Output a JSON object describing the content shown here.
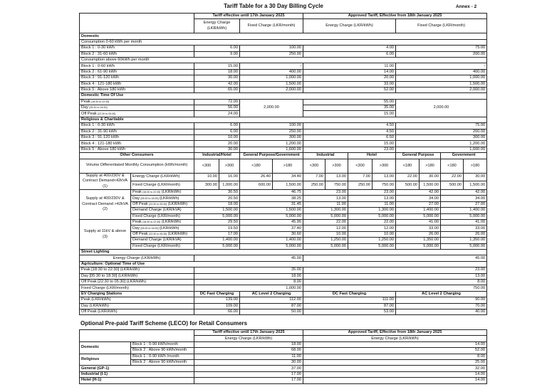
{
  "title": "Tariff Table for a 30 Day Billing Cycle",
  "annex": "Annex - 2",
  "header": {
    "old": "Tariff effective until 17th January 2025",
    "new": "Approved Tariff, Effective from 18th January 2025",
    "old_energy": "Energy Charge (LKR/kWh)",
    "old_fixed": "Fixed Charge (LKR/month)",
    "new_energy": "Energy Charge (LKR/kWh)",
    "new_fixed": "Fixed Charge (LKR/month)"
  },
  "domestic": {
    "heading": "Domestic",
    "groups": [
      {
        "label": "Consumption 0-60 kWh per month",
        "blocks": [
          {
            "label": "Block 1 : 0-30 kWh",
            "old_energy": "6.00",
            "old_fixed": "100.00",
            "new_energy": "4.00",
            "new_fixed": "75.00"
          },
          {
            "label": "Block 2 : 31-60 kWh",
            "old_energy": "9.00",
            "old_fixed": "250.00",
            "new_energy": "6.00",
            "new_fixed": "200.00"
          }
        ]
      },
      {
        "label": "Consumption above 60kWh per month",
        "blocks": [
          {
            "label": "Block 1 : 0-60 kWh",
            "old_energy": "15.00",
            "old_fixed": "-",
            "new_energy": "11.00",
            "new_fixed": "-"
          },
          {
            "label": "Block 2 : 61-90 kWh",
            "old_energy": "18.00",
            "old_fixed": "400.00",
            "new_energy": "14.00",
            "new_fixed": "400.00"
          },
          {
            "label": "Block 3 : 91-120 kWh",
            "old_energy": "30.00",
            "old_fixed": "1,000.00",
            "new_energy": "20.00",
            "new_fixed": "1,000.00"
          },
          {
            "label": "Block 4 : 121-180 kWh",
            "old_energy": "42.00",
            "old_fixed": "1,500.00",
            "new_energy": "33.00",
            "new_fixed": "1,500.00"
          },
          {
            "label": "Block 5 : Above 180 kWh",
            "old_energy": "65.00",
            "old_fixed": "2,000.00",
            "new_energy": "52.00",
            "new_fixed": "2,000.00"
          }
        ]
      }
    ]
  },
  "domestic_tou": {
    "heading": "Domestic Time Of Use",
    "old_fixed": "2,000.00",
    "new_fixed": "2,000.00",
    "rows": [
      {
        "label": "Peak",
        "time": "[18:30 to 22:30]",
        "old_energy": "72.00",
        "new_energy": "55.00"
      },
      {
        "label": "Day",
        "time": "[05:30 to 18:30]",
        "old_energy": "56.00",
        "new_energy": "35.00"
      },
      {
        "label": "Off Peak",
        "time": "[22:30 to 05:30]",
        "old_energy": "24.00",
        "new_energy": "15.00"
      }
    ]
  },
  "religious": {
    "heading": "Religious & Charitable",
    "blocks": [
      {
        "label": "Block 1 : 0-30 kWh",
        "old_energy": "6.00",
        "old_fixed": "100.00",
        "new_energy": "4.50",
        "new_fixed": "75.00"
      },
      {
        "label": "Block 2 : 31-90 kWh",
        "old_energy": "6.00",
        "old_fixed": "250.00",
        "new_energy": "4.50",
        "new_fixed": "200.00"
      },
      {
        "label": "Block 3 : 91-120 kWh",
        "old_energy": "10.00",
        "old_fixed": "300.00",
        "new_energy": "6.50",
        "new_fixed": "300.00"
      },
      {
        "label": "Block 4 : 121-180 kWh",
        "old_energy": "20.00",
        "old_fixed": "1,200.00",
        "new_energy": "15.00",
        "new_fixed": "1,200.00"
      },
      {
        "label": "Block 5 : Above 180 kWh",
        "old_energy": "30.00",
        "old_fixed": "1,600.00",
        "new_energy": "23.00",
        "new_fixed": "1,600.00"
      }
    ]
  },
  "other": {
    "heading": "Other Consumers",
    "categories_old": [
      "Industrial/Hotel",
      "General Purpose/Government"
    ],
    "categories_new": [
      "Industrial",
      "Hotel",
      "General Purpose",
      "Government"
    ],
    "volume_label": "Volume Differentiated Monthly Consumption (kWh/month)",
    "thresholds": [
      "<300",
      ">300",
      "<180",
      ">180",
      "<300",
      ">300",
      "<300",
      ">300",
      "<180",
      ">180",
      "<180",
      ">180"
    ],
    "supply1": {
      "label": "Supply at 400/230V & Contract Demand<42kVA (1)",
      "rows": [
        {
          "label": "Energy Charge (LKR/kWh)",
          "values": [
            "10.00",
            "16.00",
            "26.40",
            "34.40",
            "7.00",
            "13.00",
            "7.00",
            "13.00",
            "22.00",
            "30.00",
            "22.00",
            "30.00"
          ]
        },
        {
          "label": "Fixed Charge (LKR/month)",
          "values": [
            "300.00",
            "1,000.00",
            "600.00",
            "1,500.00",
            "250.00",
            "750.00",
            "250.00",
            "750.00",
            "500.00",
            "1,500.00",
            "500.00",
            "1,500.00"
          ]
        }
      ]
    },
    "supply2": {
      "label": "Supply at 400/230V & Contract Demand >42kVA (2)",
      "rows": [
        {
          "label": "Peak",
          "time": "[18:30 to 22:30]",
          "unit": "(LKR/kWh)",
          "values": [
            "30.50",
            "46.75",
            "23.00",
            "23.00",
            "42.00",
            "42.00"
          ]
        },
        {
          "label": "Day",
          "time": "[05:30 to 18:30]",
          "unit": "(LKR/kWh)",
          "values": [
            "20.50",
            "38.25",
            "13.00",
            "13.00",
            "34.00",
            "34.00"
          ]
        },
        {
          "label": "Off Peak",
          "time": "[22:30 to 05:30]",
          "unit": "(LKR/kWh)",
          "values": [
            "18.00",
            "31.45",
            "11.00",
            "11.00",
            "27.00",
            "27.00"
          ]
        },
        {
          "label": "Demand Charge (LKR/kVA)",
          "time": "",
          "unit": "",
          "values": [
            "1,500.00",
            "1,500.00",
            "1,300.00",
            "1,300.00",
            "1,400.00",
            "1,400.00"
          ]
        },
        {
          "label": "Fixed Charge (LKR/month)",
          "time": "",
          "unit": "",
          "values": [
            "5,000.00",
            "5,000.00",
            "5,000.00",
            "5,000.00",
            "5,000.00",
            "5,000.00"
          ]
        }
      ]
    },
    "supply3": {
      "label": "Supply at 11kV & above (3)",
      "rows": [
        {
          "label": "Peak",
          "time": "[18:30 to 22:30]",
          "unit": "(LKR/kWh)",
          "values": [
            "29.50",
            "45.90",
            "22.00",
            "22.00",
            "41.00",
            "41.00"
          ]
        },
        {
          "label": "Day",
          "time": "[05:30 to 18:30]",
          "unit": "(LKR/kWh)",
          "values": [
            "19.50",
            "37.40",
            "12.00",
            "12.00",
            "33.00",
            "33.00"
          ]
        },
        {
          "label": "Off Peak",
          "time": "[22:30 to 05:30]",
          "unit": "(LKR/kWh)",
          "values": [
            "17.00",
            "30.60",
            "10.00",
            "10.00",
            "26.00",
            "26.00"
          ]
        },
        {
          "label": "Demand Charge (LKR/kVA)",
          "time": "",
          "unit": "",
          "values": [
            "1,400.00",
            "1,400.00",
            "1,250.00",
            "1,250.00",
            "1,350.00",
            "1,350.00"
          ]
        },
        {
          "label": "Fixed Charge (LKR/month)",
          "time": "",
          "unit": "",
          "values": [
            "5,000.00",
            "5,000.00",
            "5,000.00",
            "5,000.00",
            "5,000.00",
            "5,000.00"
          ]
        }
      ]
    }
  },
  "street_lighting": {
    "heading": "Street Lighting",
    "rows": [
      {
        "label": "Energy Charge (LKR/kWh)",
        "old": "45.00",
        "new": "45.00"
      }
    ]
  },
  "agriculture": {
    "heading": "Agriculture: Optional Time of Use",
    "rows": [
      {
        "label": "Peak [18:30 to 22:30] (LKR/kWh)",
        "old": "35.00",
        "new": "23.00"
      },
      {
        "label": "Day [05:30 to 18:30] (LKR/kWh)",
        "old": "18.00",
        "new": "13.00"
      },
      {
        "label": "Off Peak [22:30 to 05:30] (LKR/kWh)",
        "old": "8.00",
        "new": "8.00"
      },
      {
        "label": "Fixed Charge (LKR/month)",
        "old": "1,000.00",
        "new": "750.00"
      }
    ]
  },
  "ev": {
    "heading": "EV Charging Stations",
    "dc": "DC Fast Charging",
    "ac": "AC Level 2 Charging",
    "rows": [
      {
        "label": "Peak (LKR/kWh)",
        "old_dc": "139.00",
        "old_ac": "112.00",
        "new_dc": "111.00",
        "new_ac": "90.00"
      },
      {
        "label": "Day (LKR/kWh)",
        "old_dc": "109.00",
        "old_ac": "87.00",
        "new_dc": "87.00",
        "new_ac": "70.00"
      },
      {
        "label": "Off Peak (LKR/kWh)",
        "old_dc": "66.00",
        "old_ac": "50.00",
        "new_dc": "53.00",
        "new_ac": "40.00"
      }
    ]
  },
  "prepaid": {
    "title": "Optional Pre-paid Tariff Scheme (LECO) for Retail Consumers",
    "old_header": "Tariff effective until 17th January 2025",
    "new_header": "Approved Tariff, Effective from 18th January 2025",
    "old_sub": "Energy Charge (LKR/kWh)",
    "new_sub": "Energy Charge (LKR/kWh)",
    "groups": [
      {
        "label": "Domestic",
        "rows": [
          {
            "label": "Block 1 : 0-90 kWh/month",
            "old": "18.00",
            "new": "14.00"
          },
          {
            "label": "Block 2 : Above 90 kWh/month",
            "old": "68.00",
            "new": "52.00"
          }
        ]
      },
      {
        "label": "Religious",
        "rows": [
          {
            "label": "Block 1 : 0-90 kWh /month",
            "old": "11.00",
            "new": "8.00"
          },
          {
            "label": "Block 2 : Above 90 kWh/month",
            "old": "30.00",
            "new": "25.00"
          }
        ]
      }
    ],
    "singles": [
      {
        "label": "General (GP-1)",
        "old": "37.00",
        "new": "32.00"
      },
      {
        "label": "Industrial (I-1)",
        "old": "17.00",
        "new": "14.00"
      },
      {
        "label": "Hotel (H-1)",
        "old": "17.00",
        "new": "14.00"
      }
    ]
  }
}
